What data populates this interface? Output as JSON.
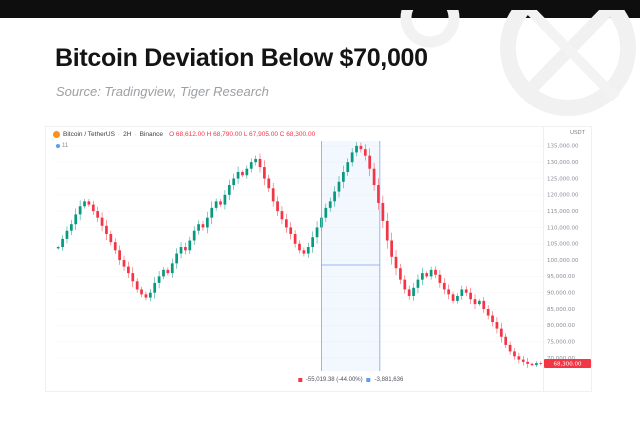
{
  "page": {
    "title": "Bitcoin Deviation Below $70,000",
    "subtitle": "Source: Tradingview, Tiger Research"
  },
  "chart": {
    "legend": {
      "symbol": "Bitcoin / TetherUS",
      "interval": "2H",
      "exchange": "Binance",
      "separator": "·",
      "ohlc": "O 68,612.00  H 68,790.00  L 67,905.00  C 68,300.00",
      "row2": "11"
    },
    "axis_currency": "USDT",
    "measure_label": {
      "change": "-55,019.38 (-44.00%)",
      "extra": "-3,881,636"
    }
  },
  "chart_data": {
    "type": "candlestick",
    "symbol": "Bitcoin / TetherUS",
    "interval": "2H",
    "exchange": "Binance",
    "currency": "USDT",
    "up_color": "#089981",
    "down_color": "#f23645",
    "y_min": 66000,
    "y_max": 136500,
    "y_ticks": [
      135000,
      130000,
      125000,
      120000,
      115000,
      110000,
      105000,
      100000,
      95000,
      90000,
      85000,
      80000,
      75000,
      70000
    ],
    "last_price": 68300,
    "prices": [
      104000,
      106500,
      109000,
      111000,
      114000,
      116500,
      118000,
      117000,
      115000,
      113000,
      110500,
      108000,
      105500,
      103000,
      100000,
      98000,
      96000,
      93500,
      91000,
      89500,
      88500,
      90000,
      93000,
      95000,
      97000,
      96000,
      99000,
      102000,
      104000,
      103000,
      106000,
      109000,
      111000,
      110000,
      113000,
      116000,
      118000,
      117000,
      120000,
      123000,
      125000,
      127000,
      126000,
      128000,
      130000,
      131000,
      128500,
      125000,
      122000,
      118000,
      115000,
      112500,
      110000,
      108000,
      105000,
      103000,
      102000,
      104000,
      107000,
      110000,
      113000,
      116000,
      118000,
      121000,
      124000,
      127000,
      130000,
      133000,
      135000,
      134000,
      132000,
      128000,
      123000,
      117500,
      112000,
      106000,
      101000,
      97500,
      94000,
      91000,
      89000,
      91500,
      94000,
      96000,
      95000,
      97000,
      95500,
      93000,
      91000,
      89500,
      87500,
      89000,
      91000,
      90000,
      88000,
      86500,
      87500,
      85000,
      83000,
      81000,
      79000,
      76500,
      74000,
      72000,
      70500,
      69500,
      68800,
      68200,
      67800,
      68400,
      68300
    ],
    "measure": {
      "start_frac": 0.545,
      "end_frac": 0.665,
      "mid_price": 98500,
      "line_color": "#7da6f0",
      "fill_color": "rgba(49,121,245,0.06)"
    }
  }
}
